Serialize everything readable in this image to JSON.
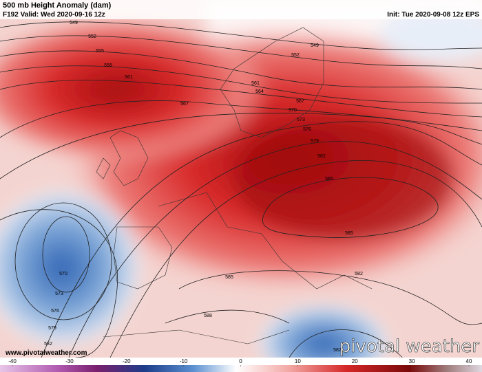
{
  "header": {
    "title": "500 mb Height Anomaly (dam)",
    "valid": "F192 Valid: Wed 2020-09-16 12z",
    "init": "Init: Tue 2020-09-08 12z EPS"
  },
  "map": {
    "contour_labels": [
      549,
      552,
      555,
      558,
      561,
      567,
      561,
      564,
      567,
      570,
      573,
      576,
      579,
      582,
      585,
      585,
      582,
      585,
      588,
      549,
      552,
      570,
      573,
      576,
      579,
      582,
      582
    ]
  },
  "footer": {
    "website": "www.pivotalweather.com",
    "logo": "pivotal weather"
  },
  "colorbar": {
    "ticks": [
      -40,
      -30,
      -20,
      -10,
      0,
      10,
      20,
      30,
      40
    ]
  }
}
